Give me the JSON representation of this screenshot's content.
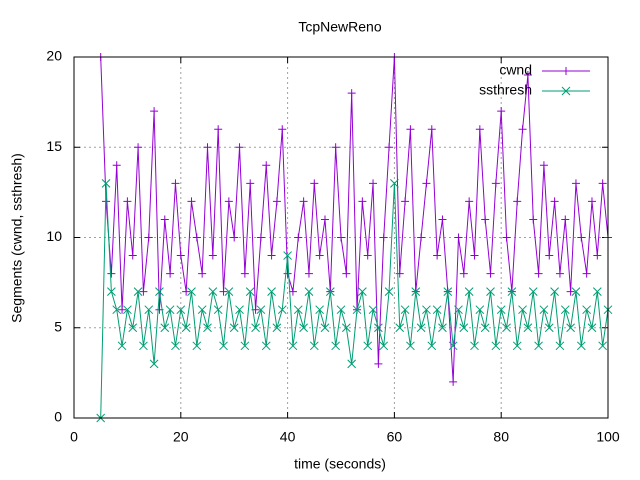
{
  "chart_data": {
    "type": "line",
    "title": "TcpNewReno",
    "xlabel": "time (seconds)",
    "ylabel": "Segments (cwnd, ssthresh)",
    "x": [
      5,
      6,
      7,
      8,
      9,
      10,
      11,
      12,
      13,
      14,
      15,
      16,
      17,
      18,
      19,
      20,
      21,
      22,
      23,
      24,
      25,
      26,
      27,
      28,
      29,
      30,
      31,
      32,
      33,
      34,
      35,
      36,
      37,
      38,
      39,
      40,
      41,
      42,
      43,
      44,
      45,
      46,
      47,
      48,
      49,
      50,
      51,
      52,
      53,
      54,
      55,
      56,
      57,
      58,
      59,
      60,
      61,
      62,
      63,
      64,
      65,
      66,
      67,
      68,
      69,
      70,
      71,
      72,
      73,
      74,
      75,
      76,
      77,
      78,
      79,
      80,
      81,
      82,
      83,
      84,
      85,
      86,
      87,
      88,
      89,
      90,
      91,
      92,
      93,
      94,
      95,
      96,
      97,
      98,
      99,
      100
    ],
    "series": [
      {
        "name": "cwnd",
        "color": "#9400d3",
        "marker": "plus",
        "values": [
          20,
          12,
          8,
          14,
          6,
          12,
          9,
          15,
          7,
          10,
          17,
          6,
          11,
          8,
          13,
          9,
          7,
          12,
          10,
          8,
          15,
          9,
          16,
          7,
          12,
          10,
          15,
          8,
          13,
          6,
          10,
          14,
          9,
          12,
          16,
          8,
          7,
          10,
          12,
          8,
          13,
          9,
          11,
          7,
          15,
          10,
          8,
          18,
          6,
          12,
          9,
          13,
          3,
          10,
          15,
          20,
          8,
          12,
          16,
          7,
          10,
          13,
          16,
          9,
          11,
          7,
          2,
          10,
          8,
          12,
          9,
          16,
          11,
          8,
          13,
          17,
          10,
          7,
          12,
          16,
          19,
          11,
          8,
          14,
          9,
          12,
          8,
          11,
          7,
          13,
          10,
          8,
          12,
          9,
          13,
          10
        ]
      },
      {
        "name": "ssthresh",
        "color": "#009e73",
        "marker": "cross",
        "values": [
          0,
          13,
          7,
          6,
          4,
          6,
          5,
          7,
          4,
          6,
          3,
          7,
          5,
          6,
          4,
          6,
          5,
          7,
          4,
          6,
          5,
          7,
          6,
          4,
          7,
          5,
          6,
          4,
          7,
          5,
          6,
          4,
          7,
          5,
          6,
          9,
          4,
          6,
          5,
          7,
          4,
          6,
          5,
          7,
          4,
          6,
          5,
          3,
          6,
          7,
          4,
          6,
          5,
          4,
          7,
          13,
          5,
          6,
          4,
          7,
          5,
          6,
          4,
          6,
          5,
          7,
          4,
          6,
          5,
          7,
          4,
          6,
          5,
          7,
          4,
          6,
          5,
          7,
          4,
          6,
          5,
          7,
          4,
          6,
          5,
          7,
          4,
          6,
          5,
          7,
          4,
          6,
          5,
          7,
          4,
          6
        ]
      }
    ],
    "xlim": [
      0,
      100
    ],
    "xticks": [
      0,
      20,
      40,
      60,
      80,
      100
    ],
    "ylim": [
      0,
      20
    ],
    "yticks": [
      0,
      5,
      10,
      15,
      20
    ],
    "grid": true,
    "legend": "top-right"
  }
}
